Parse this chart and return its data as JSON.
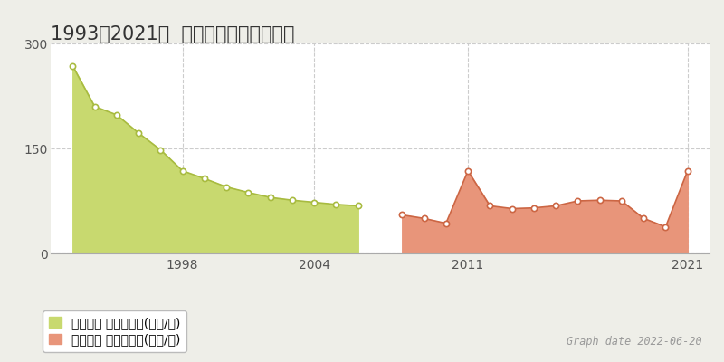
{
  "title": "1993〡2021年  松戸市根本の地価推移",
  "background_color": "#eeeee8",
  "plot_background_color": "#ffffff",
  "grid_color": "#cccccc",
  "ylim": [
    0,
    300
  ],
  "yticks": [
    0,
    150,
    300
  ],
  "green_series_label": "地価公示 平均坊単価(万円/坊)",
  "red_series_label": "取引価格 平均坊単価(万円/坊)",
  "green_color": "#c8d96f",
  "green_line_color": "#a8bb40",
  "red_color": "#e8957a",
  "red_line_color": "#cc6644",
  "marker_fill": "white",
  "marker_edge_green": "#a8bb40",
  "marker_edge_red": "#cc6644",
  "green_years": [
    1993,
    1994,
    1995,
    1996,
    1997,
    1998,
    1999,
    2000,
    2001,
    2002,
    2003,
    2004,
    2005,
    2006
  ],
  "green_values": [
    268,
    210,
    198,
    172,
    148,
    118,
    107,
    95,
    87,
    80,
    76,
    73,
    70,
    68
  ],
  "red_years": [
    2008,
    2009,
    2010,
    2011,
    2012,
    2013,
    2014,
    2015,
    2016,
    2017,
    2018,
    2019,
    2020,
    2021
  ],
  "red_values": [
    55,
    50,
    43,
    118,
    68,
    64,
    65,
    68,
    75,
    76,
    75,
    50,
    38,
    118
  ],
  "xmin": 1992,
  "xmax": 2022,
  "xticks": [
    1998,
    2004,
    2011,
    2021
  ],
  "graph_date_text": "Graph date 2022-06-20",
  "title_fontsize": 15,
  "axis_fontsize": 10,
  "legend_fontsize": 10,
  "date_fontsize": 8.5
}
